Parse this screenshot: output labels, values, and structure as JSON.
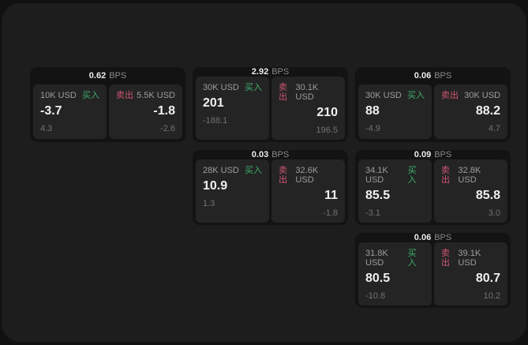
{
  "labels": {
    "bps_unit": "BPS",
    "buy": "买入",
    "sell": "卖出"
  },
  "colors": {
    "window_bg": "#1d1d1d",
    "outer_bg": "#111111",
    "card_bg": "#131313",
    "panel_bg": "#242424",
    "buy_accent": "#3eaf6c",
    "sell_accent": "#cf5571",
    "text_primary": "#f0f0f0",
    "text_secondary": "#9c9c9c",
    "text_muted": "#717171"
  },
  "cards": [
    {
      "bps": "0.62",
      "buy": {
        "amount": "10K USD",
        "price": "-3.7",
        "delta": "4.3"
      },
      "sell": {
        "amount": "5.5K USD",
        "price": "-1.8",
        "delta": "-2.6"
      }
    },
    {
      "bps": "2.92",
      "buy": {
        "amount": "30K USD",
        "price": "201",
        "delta": "-188.1"
      },
      "sell": {
        "amount": "30.1K USD",
        "price": "210",
        "delta": "196.5"
      }
    },
    {
      "bps": "0.03",
      "buy": {
        "amount": "28K USD",
        "price": "10.9",
        "delta": "1.3"
      },
      "sell": {
        "amount": "32.6K USD",
        "price": "11",
        "delta": "-1.8"
      }
    },
    {
      "bps": "0.06",
      "buy": {
        "amount": "30K USD",
        "price": "88",
        "delta": "-4.9"
      },
      "sell": {
        "amount": "30K USD",
        "price": "88.2",
        "delta": "4.7"
      }
    },
    {
      "bps": "0.09",
      "buy": {
        "amount": "34.1K USD",
        "price": "85.5",
        "delta": "-3.1"
      },
      "sell": {
        "amount": "32.8K USD",
        "price": "85.8",
        "delta": "3.0"
      }
    },
    {
      "bps": "0.06",
      "buy": {
        "amount": "31.8K USD",
        "price": "80.5",
        "delta": "-10.8"
      },
      "sell": {
        "amount": "39.1K USD",
        "price": "80.7",
        "delta": "10.2"
      }
    }
  ]
}
